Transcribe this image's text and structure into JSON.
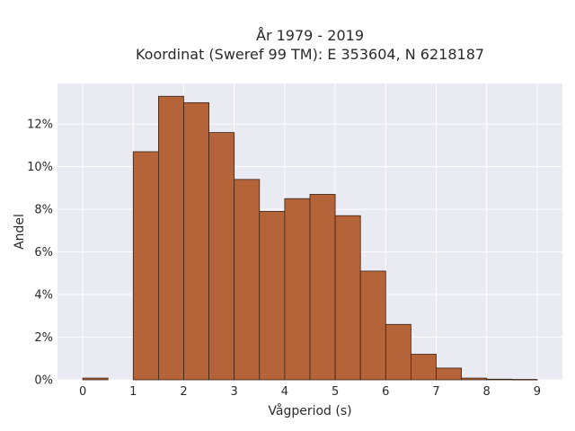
{
  "chart_data": {
    "type": "bar",
    "title_line1": "År 1979 - 2019",
    "title_line2": "Koordinat (Sweref 99 TM): E 353604, N 6218187",
    "xlabel": "Vågperiod (s)",
    "ylabel": "Andel",
    "xlim": [
      -0.5,
      9.5
    ],
    "ylim": [
      0,
      0.139
    ],
    "x_ticks": [
      0,
      1,
      2,
      3,
      4,
      5,
      6,
      7,
      8,
      9
    ],
    "x_tick_labels": [
      "0",
      "1",
      "2",
      "3",
      "4",
      "5",
      "6",
      "7",
      "8",
      "9"
    ],
    "y_ticks": [
      0,
      0.02,
      0.04,
      0.06,
      0.08,
      0.1,
      0.12
    ],
    "y_tick_labels": [
      "0%",
      "2%",
      "4%",
      "6%",
      "8%",
      "10%",
      "12%"
    ],
    "bin_width": 0.5,
    "bins": [
      {
        "x0": 0.0,
        "value": 0.0008
      },
      {
        "x0": 1.0,
        "value": 0.107
      },
      {
        "x0": 1.5,
        "value": 0.133
      },
      {
        "x0": 2.0,
        "value": 0.13
      },
      {
        "x0": 2.5,
        "value": 0.116
      },
      {
        "x0": 3.0,
        "value": 0.094
      },
      {
        "x0": 3.5,
        "value": 0.079
      },
      {
        "x0": 4.0,
        "value": 0.085
      },
      {
        "x0": 4.5,
        "value": 0.087
      },
      {
        "x0": 5.0,
        "value": 0.077
      },
      {
        "x0": 5.5,
        "value": 0.051
      },
      {
        "x0": 6.0,
        "value": 0.026
      },
      {
        "x0": 6.5,
        "value": 0.012
      },
      {
        "x0": 7.0,
        "value": 0.0055
      },
      {
        "x0": 7.5,
        "value": 0.0008
      },
      {
        "x0": 8.0,
        "value": 0.0003
      },
      {
        "x0": 8.5,
        "value": 0.0002
      }
    ],
    "grid": true,
    "colors": {
      "bar_fill": "#b5643a",
      "bar_edge": "#3a2416",
      "plot_bg": "#e9eaf2",
      "grid": "#ffffff"
    }
  }
}
